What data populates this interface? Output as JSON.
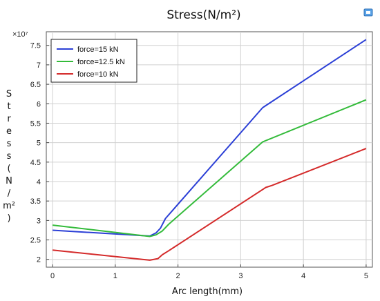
{
  "chart_data": {
    "type": "line",
    "title": "Stress(N/m²)",
    "xlabel": "Arc length(mm)",
    "ylabel": "Stress(N/m²)",
    "ylabel_chars": [
      "S",
      "t",
      "r",
      "e",
      "s",
      "s",
      "(",
      "N",
      "/",
      "m²",
      ")"
    ],
    "y_multiplier": "×10⁷",
    "xlim": [
      -0.1,
      5.1
    ],
    "ylim": [
      1.8,
      7.85
    ],
    "xticks": [
      0,
      1,
      2,
      3,
      4,
      5
    ],
    "yticks": [
      2,
      2.5,
      3,
      3.5,
      4,
      4.5,
      5,
      5.5,
      6,
      6.5,
      7,
      7.5
    ],
    "grid": true,
    "legend_position": "top-left",
    "series": [
      {
        "name": "force=15 kN",
        "color": "#2b3fd6",
        "x": [
          0,
          1.55,
          1.65,
          1.72,
          1.8,
          3.35,
          5
        ],
        "y": [
          2.75,
          2.6,
          2.68,
          2.8,
          3.05,
          5.9,
          7.65
        ]
      },
      {
        "name": "force=12.5 kN",
        "color": "#33bb3a",
        "x": [
          0,
          1.55,
          1.65,
          1.75,
          1.85,
          3.35,
          5
        ],
        "y": [
          2.88,
          2.59,
          2.63,
          2.73,
          2.9,
          5.02,
          6.1
        ]
      },
      {
        "name": "force=10 kN",
        "color": "#d42a2a",
        "x": [
          0,
          1.55,
          1.68,
          1.75,
          1.85,
          3.4,
          3.5,
          5
        ],
        "y": [
          2.24,
          1.98,
          2.02,
          2.12,
          2.22,
          3.85,
          3.9,
          4.85
        ]
      }
    ]
  }
}
